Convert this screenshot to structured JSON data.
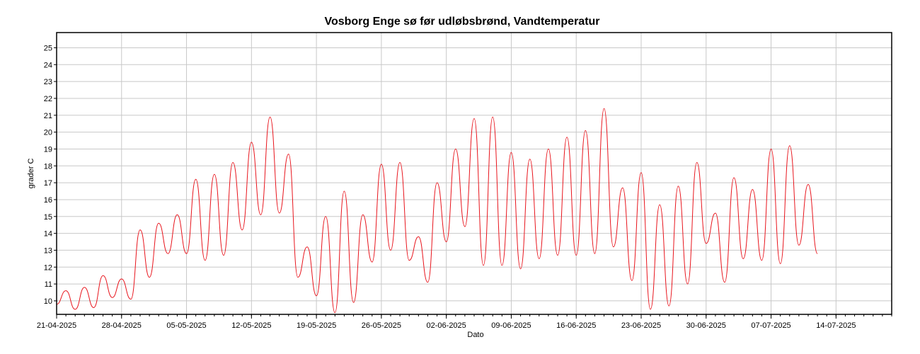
{
  "chart_data": {
    "type": "line",
    "title": "Vosborg Enge sø før udløbsbrønd, Vandtemperatur",
    "xlabel": "Dato",
    "ylabel": "grader C",
    "xlim": [
      "2025-04-21",
      "2025-07-20"
    ],
    "ylim": [
      9.2,
      25.9
    ],
    "x_ticks": [
      "21-04-2025",
      "28-04-2025",
      "05-05-2025",
      "12-05-2025",
      "19-05-2025",
      "26-05-2025",
      "02-06-2025",
      "09-06-2025",
      "16-06-2025",
      "23-06-2025",
      "30-06-2025",
      "07-07-2025",
      "14-07-2025"
    ],
    "y_ticks": [
      "10",
      "11",
      "12",
      "13",
      "14",
      "15",
      "16",
      "17",
      "18",
      "19",
      "20",
      "21",
      "22",
      "23",
      "24",
      "25"
    ],
    "grid": true,
    "line_color": "#e8141c",
    "series": [
      {
        "points": [
          [
            "2025-04-21",
            9.8
          ],
          [
            "2025-04-22",
            10.6
          ],
          [
            "2025-04-23",
            9.5
          ],
          [
            "2025-04-24",
            10.8
          ],
          [
            "2025-04-25",
            9.6
          ],
          [
            "2025-04-26",
            11.5
          ],
          [
            "2025-04-27",
            10.2
          ],
          [
            "2025-04-28",
            11.3
          ],
          [
            "2025-04-29",
            10.1
          ],
          [
            "2025-04-30",
            14.2
          ],
          [
            "2025-05-01",
            11.4
          ],
          [
            "2025-05-02",
            14.6
          ],
          [
            "2025-05-03",
            12.8
          ],
          [
            "2025-05-04",
            15.1
          ],
          [
            "2025-05-05",
            12.8
          ],
          [
            "2025-05-06",
            17.2
          ],
          [
            "2025-05-07",
            12.4
          ],
          [
            "2025-05-08",
            17.5
          ],
          [
            "2025-05-09",
            12.7
          ],
          [
            "2025-05-10",
            18.2
          ],
          [
            "2025-05-11",
            14.2
          ],
          [
            "2025-05-12",
            19.4
          ],
          [
            "2025-05-13",
            15.1
          ],
          [
            "2025-05-14",
            20.9
          ],
          [
            "2025-05-15",
            15.2
          ],
          [
            "2025-05-16",
            18.7
          ],
          [
            "2025-05-17",
            11.4
          ],
          [
            "2025-05-18",
            13.2
          ],
          [
            "2025-05-19",
            10.3
          ],
          [
            "2025-05-20",
            15.0
          ],
          [
            "2025-05-21",
            9.3
          ],
          [
            "2025-05-22",
            16.5
          ],
          [
            "2025-05-23",
            9.9
          ],
          [
            "2025-05-24",
            15.1
          ],
          [
            "2025-05-25",
            12.3
          ],
          [
            "2025-05-26",
            18.1
          ],
          [
            "2025-05-27",
            13.0
          ],
          [
            "2025-05-28",
            18.2
          ],
          [
            "2025-05-29",
            12.4
          ],
          [
            "2025-05-30",
            13.8
          ],
          [
            "2025-05-31",
            11.1
          ],
          [
            "2025-06-01",
            17.0
          ],
          [
            "2025-06-02",
            13.5
          ],
          [
            "2025-06-03",
            19.0
          ],
          [
            "2025-06-04",
            14.4
          ],
          [
            "2025-06-05",
            20.8
          ],
          [
            "2025-06-06",
            12.1
          ],
          [
            "2025-06-07",
            20.9
          ],
          [
            "2025-06-08",
            12.1
          ],
          [
            "2025-06-09",
            18.8
          ],
          [
            "2025-06-10",
            11.9
          ],
          [
            "2025-06-11",
            18.4
          ],
          [
            "2025-06-12",
            12.5
          ],
          [
            "2025-06-13",
            19.0
          ],
          [
            "2025-06-14",
            12.7
          ],
          [
            "2025-06-15",
            19.7
          ],
          [
            "2025-06-16",
            12.7
          ],
          [
            "2025-06-17",
            20.1
          ],
          [
            "2025-06-18",
            12.8
          ],
          [
            "2025-06-19",
            21.4
          ],
          [
            "2025-06-20",
            13.2
          ],
          [
            "2025-06-21",
            16.7
          ],
          [
            "2025-06-22",
            11.2
          ],
          [
            "2025-06-23",
            17.6
          ],
          [
            "2025-06-24",
            9.5
          ],
          [
            "2025-06-25",
            15.7
          ],
          [
            "2025-06-26",
            9.7
          ],
          [
            "2025-06-27",
            16.8
          ],
          [
            "2025-06-28",
            11.0
          ],
          [
            "2025-06-29",
            18.2
          ],
          [
            "2025-06-30",
            13.4
          ],
          [
            "2025-07-01",
            15.2
          ],
          [
            "2025-07-02",
            11.1
          ],
          [
            "2025-07-03",
            17.3
          ],
          [
            "2025-07-04",
            12.5
          ],
          [
            "2025-07-05",
            16.6
          ],
          [
            "2025-07-06",
            12.4
          ],
          [
            "2025-07-07",
            19.0
          ],
          [
            "2025-07-08",
            12.2
          ],
          [
            "2025-07-09",
            19.2
          ],
          [
            "2025-07-10",
            13.3
          ],
          [
            "2025-07-11",
            16.9
          ],
          [
            "2025-07-12",
            12.8
          ]
        ]
      }
    ]
  }
}
